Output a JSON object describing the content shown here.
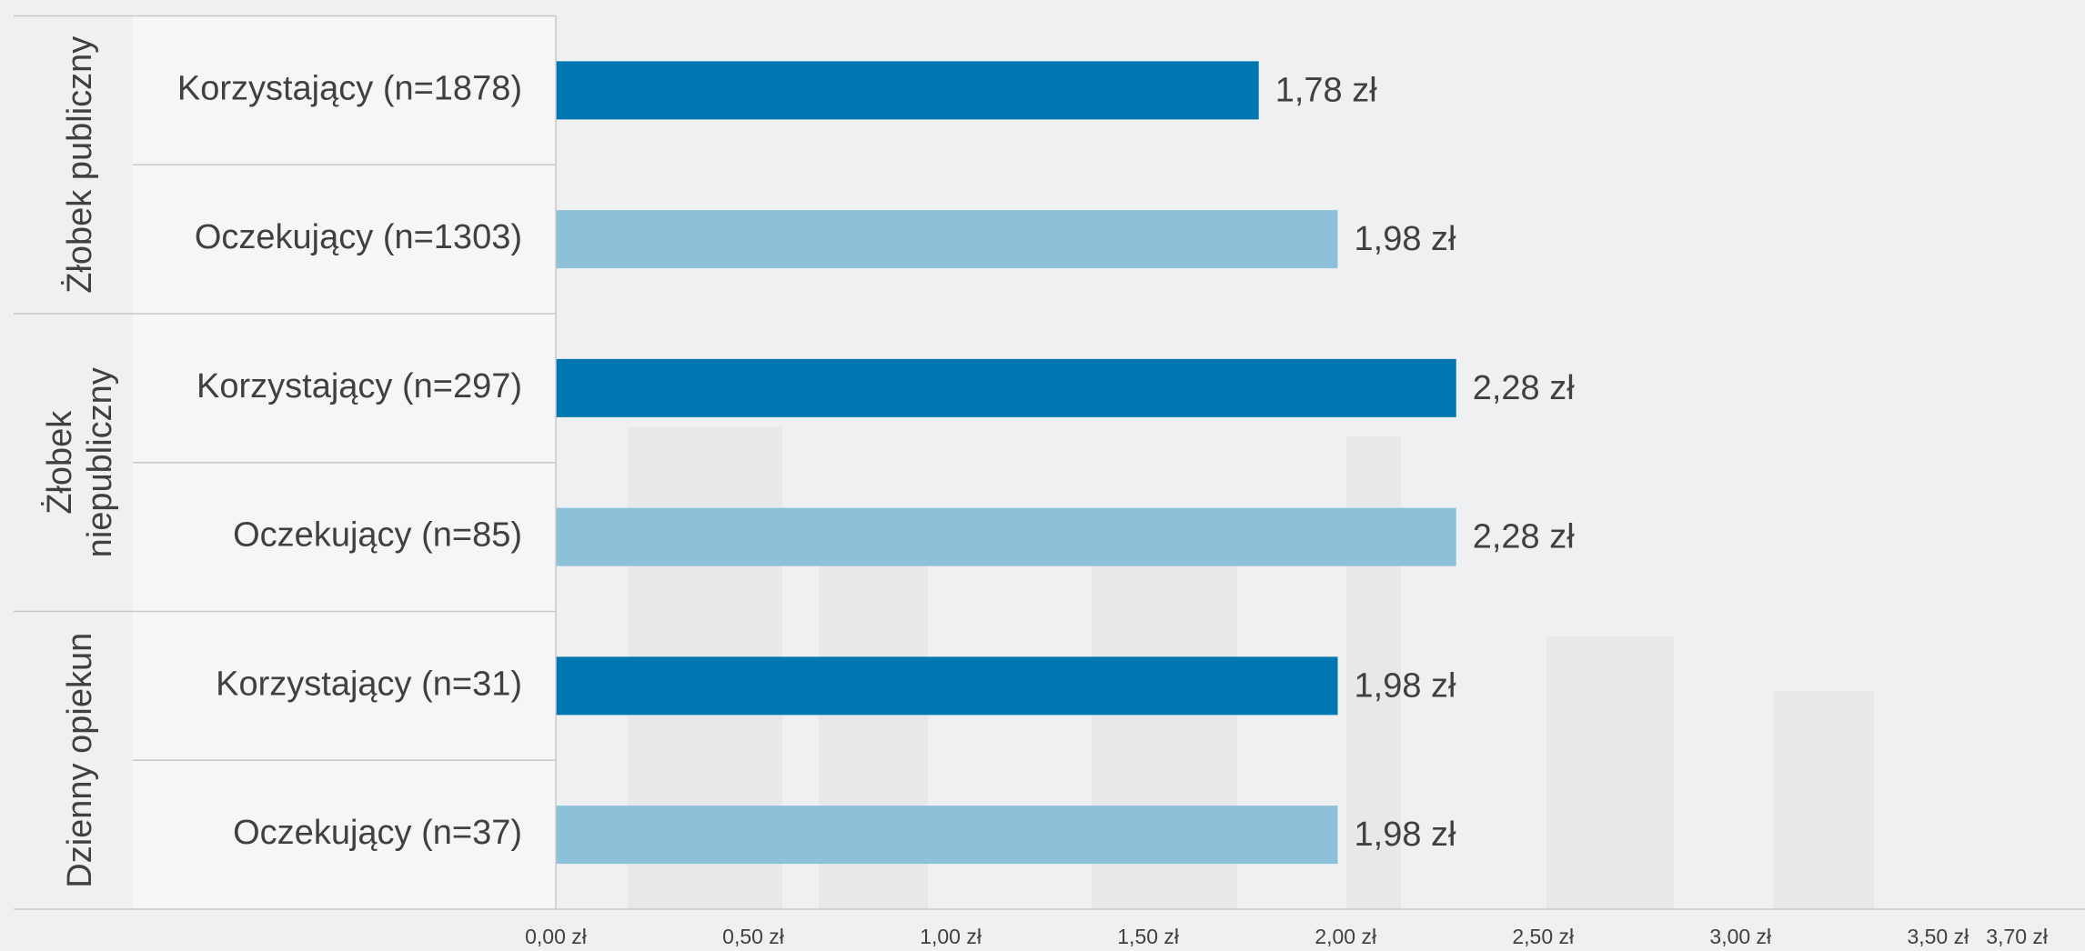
{
  "chart_data": {
    "type": "grouped-hbar",
    "groups": [
      {
        "label": [
          "Żłobek publiczny"
        ],
        "categories": [
          "Korzystający (n=1878)",
          "Oczekujący (n=1303)"
        ],
        "values": [
          1.78,
          1.98
        ],
        "value_labels": [
          "1,78 zł",
          "1,98 zł"
        ]
      },
      {
        "label": [
          "Żłobek",
          "niepubliczny"
        ],
        "categories": [
          "Korzystający (n=297)",
          "Oczekujący (n=85)"
        ],
        "values": [
          2.28,
          2.28
        ],
        "value_labels": [
          "2,28 zł",
          "2,28 zł"
        ]
      },
      {
        "label": [
          "Dzienny opiekun"
        ],
        "categories": [
          "Korzystający (n=31)",
          "Oczekujący (n=37)"
        ],
        "values": [
          1.98,
          1.98
        ],
        "value_labels": [
          "1,98 zł",
          "1,98 zł"
        ]
      }
    ],
    "colors": [
      "#0077b0",
      "#8dc1da"
    ],
    "xlim": [
      0,
      3.7
    ],
    "xticks": [
      {
        "value": 0,
        "label": "0,00 zł"
      },
      {
        "value": 0.5,
        "label": "0,50 zł"
      },
      {
        "value": 1,
        "label": "1,00 zł"
      },
      {
        "value": 1.5,
        "label": "1,50 zł"
      },
      {
        "value": 2,
        "label": "2,00 zł"
      },
      {
        "value": 2.5,
        "label": "2,50 zł"
      },
      {
        "value": 3,
        "label": "3,00 zł"
      },
      {
        "value": 3.5,
        "label": "3,50 zł"
      },
      {
        "value": 3.7,
        "label": "3,70 zł"
      }
    ],
    "grid": false
  }
}
